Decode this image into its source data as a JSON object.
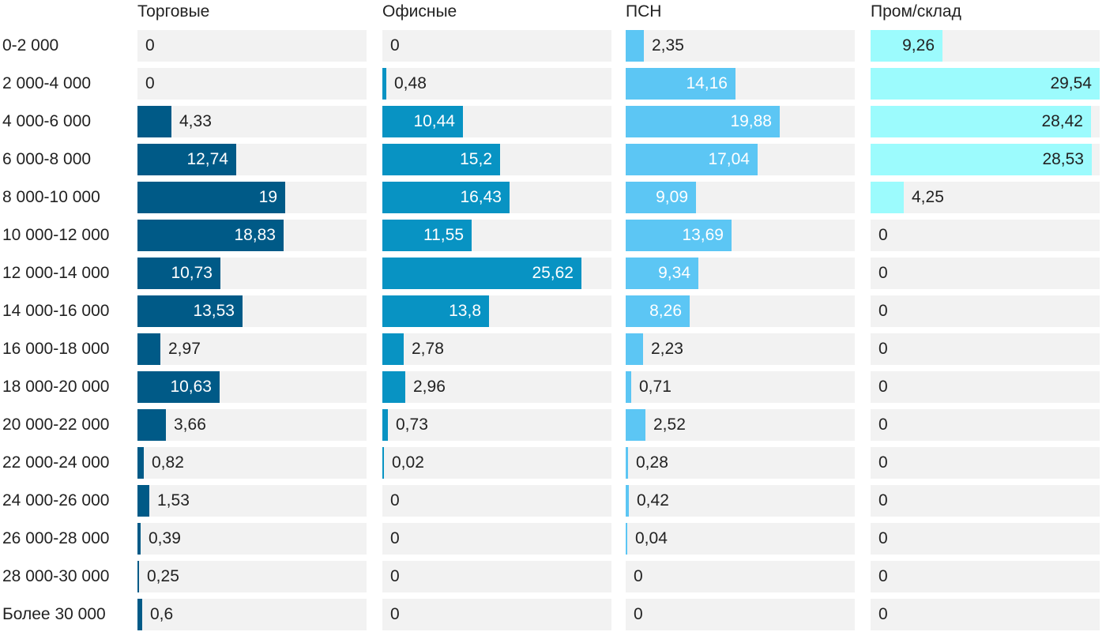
{
  "chart_data": {
    "type": "bar",
    "orientation": "horizontal",
    "layout": "small-multiples",
    "grid": false,
    "xlim": [
      0,
      29.54
    ],
    "categories": [
      "0-2 000",
      "2 000-4 000",
      "4 000-6 000",
      "6 000-8 000",
      "8 000-10 000",
      "10 000-12 000",
      "12 000-14 000",
      "14 000-16 000",
      "16 000-18 000",
      "18 000-20 000",
      "20 000-22 000",
      "22 000-24 000",
      "24 000-26 000",
      "26 000-28 000",
      "28 000-30 000",
      "Более 30 000"
    ],
    "series": [
      {
        "name": "Торговые",
        "color": "#005a87",
        "labels": [
          "0",
          "0",
          "4,33",
          "12,74",
          "19",
          "18,83",
          "10,73",
          "13,53",
          "2,97",
          "10,63",
          "3,66",
          "0,82",
          "1,53",
          "0,39",
          "0,25",
          "0,6"
        ],
        "values": [
          0,
          0,
          4.33,
          12.74,
          19,
          18.83,
          10.73,
          13.53,
          2.97,
          10.63,
          3.66,
          0.82,
          1.53,
          0.39,
          0.25,
          0.6
        ]
      },
      {
        "name": "Офисные",
        "color": "#0893c3",
        "labels": [
          "0",
          "0,48",
          "10,44",
          "15,2",
          "16,43",
          "11,55",
          "25,62",
          "13,8",
          "2,78",
          "2,96",
          "0,73",
          "0,02",
          "0",
          "0",
          "0",
          "0"
        ],
        "values": [
          0,
          0.48,
          10.44,
          15.2,
          16.43,
          11.55,
          25.62,
          13.8,
          2.78,
          2.96,
          0.73,
          0.02,
          0,
          0,
          0,
          0
        ]
      },
      {
        "name": "ПСН",
        "color": "#5cc6f4",
        "labels": [
          "2,35",
          "14,16",
          "19,88",
          "17,04",
          "9,09",
          "13,69",
          "9,34",
          "8,26",
          "2,23",
          "0,71",
          "2,52",
          "0,28",
          "0,42",
          "0,04",
          "0",
          "0"
        ],
        "values": [
          2.35,
          14.16,
          19.88,
          17.04,
          9.09,
          13.69,
          9.34,
          8.26,
          2.23,
          0.71,
          2.52,
          0.28,
          0.42,
          0.04,
          0,
          0
        ]
      },
      {
        "name": "Пром/склад",
        "color": "#9cfbfd",
        "labels": [
          "9,26",
          "29,54",
          "28,42",
          "28,53",
          "4,25",
          "0",
          "0",
          "0",
          "0",
          "0",
          "0",
          "0",
          "0",
          "0",
          "0",
          "0"
        ],
        "values": [
          9.26,
          29.54,
          28.42,
          28.53,
          4.25,
          0,
          0,
          0,
          0,
          0,
          0,
          0,
          0,
          0,
          0,
          0
        ]
      }
    ]
  }
}
